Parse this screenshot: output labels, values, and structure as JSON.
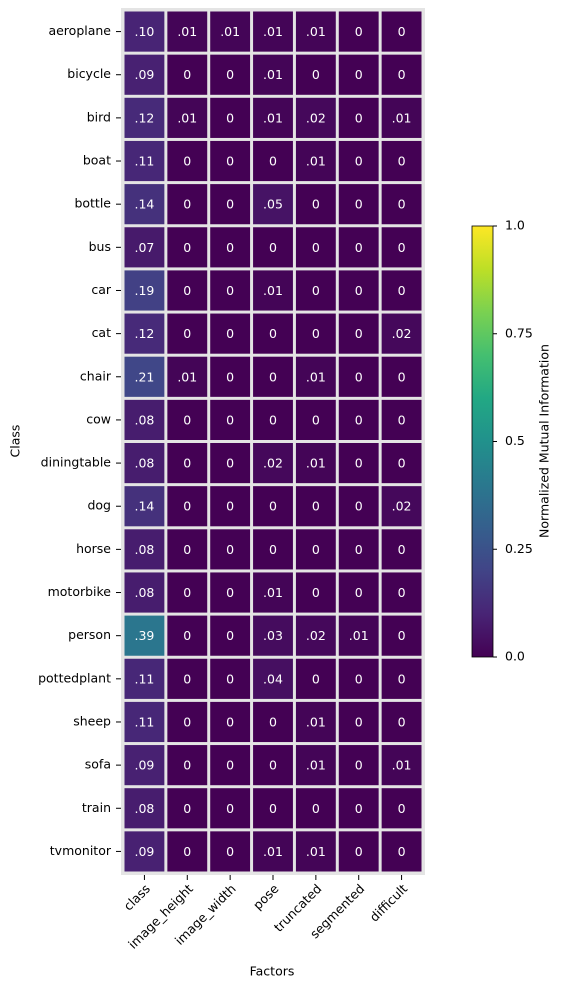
{
  "chart_data": {
    "type": "heatmap",
    "x_label": "Factors",
    "y_label": "Class",
    "x_categories": [
      "class",
      "image_height",
      "image_width",
      "pose",
      "truncated",
      "segmented",
      "difficult"
    ],
    "y_categories": [
      "aeroplane",
      "bicycle",
      "bird",
      "boat",
      "bottle",
      "bus",
      "car",
      "cat",
      "chair",
      "cow",
      "diningtable",
      "dog",
      "horse",
      "motorbike",
      "person",
      "pottedplant",
      "sheep",
      "sofa",
      "train",
      "tvmonitor"
    ],
    "values": [
      [
        0.1,
        0.01,
        0.01,
        0.01,
        0.01,
        0,
        0
      ],
      [
        0.09,
        0,
        0,
        0.01,
        0,
        0,
        0
      ],
      [
        0.12,
        0.01,
        0,
        0.01,
        0.02,
        0,
        0.01
      ],
      [
        0.11,
        0,
        0,
        0,
        0.01,
        0,
        0
      ],
      [
        0.14,
        0,
        0,
        0.05,
        0,
        0,
        0
      ],
      [
        0.07,
        0,
        0,
        0,
        0,
        0,
        0
      ],
      [
        0.19,
        0,
        0,
        0.01,
        0,
        0,
        0
      ],
      [
        0.12,
        0,
        0,
        0,
        0,
        0,
        0.02
      ],
      [
        0.21,
        0.01,
        0,
        0,
        0.01,
        0,
        0
      ],
      [
        0.08,
        0,
        0,
        0,
        0,
        0,
        0
      ],
      [
        0.08,
        0,
        0,
        0.02,
        0.01,
        0,
        0
      ],
      [
        0.14,
        0,
        0,
        0,
        0,
        0,
        0.02
      ],
      [
        0.08,
        0,
        0,
        0,
        0,
        0,
        0
      ],
      [
        0.08,
        0,
        0,
        0.01,
        0,
        0,
        0
      ],
      [
        0.39,
        0,
        0,
        0.03,
        0.02,
        0.01,
        0
      ],
      [
        0.11,
        0,
        0,
        0.04,
        0,
        0,
        0
      ],
      [
        0.11,
        0,
        0,
        0,
        0.01,
        0,
        0
      ],
      [
        0.09,
        0,
        0,
        0,
        0.01,
        0,
        0.01
      ],
      [
        0.08,
        0,
        0,
        0,
        0,
        0,
        0
      ],
      [
        0.09,
        0,
        0,
        0.01,
        0.01,
        0,
        0
      ]
    ],
    "value_labels": [
      [
        ".10",
        ".01",
        ".01",
        ".01",
        ".01",
        "0",
        "0"
      ],
      [
        ".09",
        "0",
        "0",
        ".01",
        "0",
        "0",
        "0"
      ],
      [
        ".12",
        ".01",
        "0",
        ".01",
        ".02",
        "0",
        ".01"
      ],
      [
        ".11",
        "0",
        "0",
        "0",
        ".01",
        "0",
        "0"
      ],
      [
        ".14",
        "0",
        "0",
        ".05",
        "0",
        "0",
        "0"
      ],
      [
        ".07",
        "0",
        "0",
        "0",
        "0",
        "0",
        "0"
      ],
      [
        ".19",
        "0",
        "0",
        ".01",
        "0",
        "0",
        "0"
      ],
      [
        ".12",
        "0",
        "0",
        "0",
        "0",
        "0",
        ".02"
      ],
      [
        ".21",
        ".01",
        "0",
        "0",
        ".01",
        "0",
        "0"
      ],
      [
        ".08",
        "0",
        "0",
        "0",
        "0",
        "0",
        "0"
      ],
      [
        ".08",
        "0",
        "0",
        ".02",
        ".01",
        "0",
        "0"
      ],
      [
        ".14",
        "0",
        "0",
        "0",
        "0",
        "0",
        ".02"
      ],
      [
        ".08",
        "0",
        "0",
        "0",
        "0",
        "0",
        "0"
      ],
      [
        ".08",
        "0",
        "0",
        ".01",
        "0",
        "0",
        "0"
      ],
      [
        ".39",
        "0",
        "0",
        ".03",
        ".02",
        ".01",
        "0"
      ],
      [
        ".11",
        "0",
        "0",
        ".04",
        "0",
        "0",
        "0"
      ],
      [
        ".11",
        "0",
        "0",
        "0",
        ".01",
        "0",
        "0"
      ],
      [
        ".09",
        "0",
        "0",
        "0",
        ".01",
        "0",
        ".01"
      ],
      [
        ".08",
        "0",
        "0",
        "0",
        "0",
        "0",
        "0"
      ],
      [
        ".09",
        "0",
        "0",
        ".01",
        ".01",
        "0",
        "0"
      ]
    ],
    "colormap": "viridis",
    "colorbar_label": "Normalized Mutual Information",
    "clim": [
      0,
      1
    ],
    "cticks": [
      {
        "value": 0,
        "label": "0.0"
      },
      0.25,
      0.5,
      0.75,
      {
        "value": 1,
        "label": "1.0"
      }
    ]
  }
}
